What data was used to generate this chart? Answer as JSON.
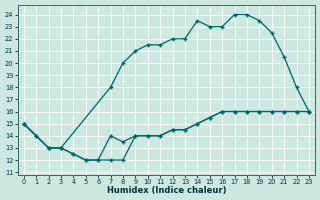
{
  "xlabel": "Humidex (Indice chaleur)",
  "bg_color": "#cce8e0",
  "grid_color": "#b8d8d0",
  "line_color": "#006666",
  "xlim": [
    -0.5,
    23.5
  ],
  "ylim": [
    10.8,
    24.8
  ],
  "xticks": [
    0,
    1,
    2,
    3,
    4,
    5,
    6,
    7,
    8,
    9,
    10,
    11,
    12,
    13,
    14,
    15,
    16,
    17,
    18,
    19,
    20,
    21,
    22,
    23
  ],
  "yticks": [
    11,
    12,
    13,
    14,
    15,
    16,
    17,
    18,
    19,
    20,
    21,
    22,
    23,
    24
  ],
  "curve_upper_x": [
    0,
    1,
    2,
    3,
    7,
    8,
    9,
    10,
    11,
    12,
    13,
    14,
    15,
    16,
    17,
    18,
    19,
    20,
    21,
    22,
    23
  ],
  "curve_upper_y": [
    15,
    14,
    13,
    13,
    18,
    20,
    21,
    21.5,
    21.5,
    22,
    22,
    23.5,
    23,
    23,
    24,
    24,
    23.5,
    22.5,
    20.5,
    18,
    16
  ],
  "curve_lower_x": [
    0,
    1,
    2,
    3,
    4,
    5,
    6,
    7,
    8,
    9,
    10,
    11,
    12,
    13,
    14,
    15,
    16,
    17,
    18,
    19,
    20,
    21,
    22,
    23
  ],
  "curve_lower_y": [
    15,
    14,
    13,
    13,
    12.5,
    12,
    12,
    14,
    13.5,
    14,
    14,
    14,
    14.5,
    14.5,
    15,
    15.5,
    16,
    16,
    16,
    16,
    16,
    16,
    16,
    16
  ],
  "curve_dip_x": [
    0,
    2,
    3,
    4,
    5,
    6,
    7,
    8,
    9,
    10,
    11,
    12,
    13,
    14,
    15,
    16,
    17,
    18,
    19,
    20,
    21,
    22,
    23
  ],
  "curve_dip_y": [
    15,
    13,
    13,
    12.5,
    12,
    12,
    12,
    12,
    14,
    14,
    14,
    14.5,
    14.5,
    15,
    15.5,
    16,
    16,
    16,
    16,
    16,
    16,
    16,
    16
  ]
}
